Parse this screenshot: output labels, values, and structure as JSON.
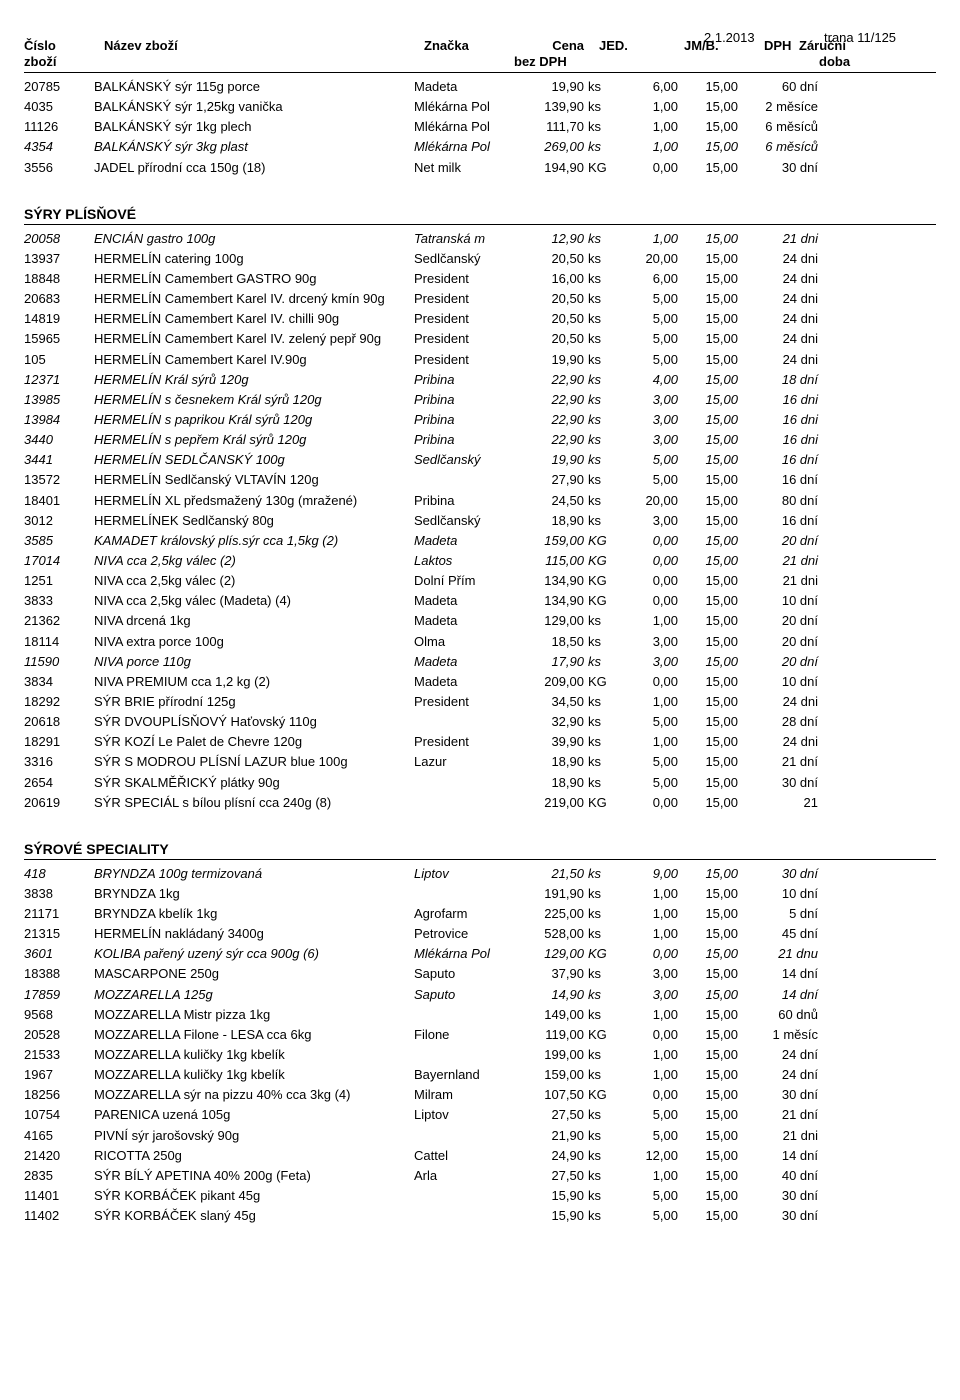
{
  "meta": {
    "date": "2.1.2013",
    "page": "trana 11/125"
  },
  "headers": {
    "cislo": "Číslo",
    "zbozi": "zboží",
    "nazev": "Název zboží",
    "znacka": "Značka",
    "cena": "Cena",
    "bezdph": "bez DPH",
    "jed": "JED.",
    "jmb": "JM/B.",
    "dph": "DPH",
    "zarucni": "Záruční",
    "doba": "doba"
  },
  "sections": [
    {
      "title": null,
      "rows": [
        {
          "i": false,
          "cislo": "20785",
          "nazev": "BALKÁNSKÝ sýr  115g porce",
          "znacka": "Madeta",
          "cena": "19,90",
          "jed": "ks",
          "jmb": "6,00",
          "dph": "15,00",
          "doba": "60 dní"
        },
        {
          "i": false,
          "cislo": "4035",
          "nazev": "BALKÁNSKÝ sýr 1,25kg vanička",
          "znacka": "Mlékárna Pol",
          "cena": "139,90",
          "jed": "ks",
          "jmb": "1,00",
          "dph": "15,00",
          "doba": "2 měsíce"
        },
        {
          "i": false,
          "cislo": "11126",
          "nazev": "BALKÁNSKÝ sýr 1kg plech",
          "znacka": "Mlékárna Pol",
          "cena": "111,70",
          "jed": "ks",
          "jmb": "1,00",
          "dph": "15,00",
          "doba": "6 měsíců"
        },
        {
          "i": true,
          "cislo": "4354",
          "nazev": "BALKÁNSKÝ sýr 3kg plast",
          "znacka": "Mlékárna Pol",
          "cena": "269,00",
          "jed": "ks",
          "jmb": "1,00",
          "dph": "15,00",
          "doba": "6 měsíců"
        },
        {
          "i": false,
          "cislo": "3556",
          "nazev": "JADEL přírodní cca 150g (18)",
          "znacka": "Net milk",
          "cena": "194,90",
          "jed": "KG",
          "jmb": "0,00",
          "dph": "15,00",
          "doba": "30 dní"
        }
      ]
    },
    {
      "title": "SÝRY PLÍSŇOVÉ",
      "rows": [
        {
          "i": true,
          "cislo": "20058",
          "nazev": "ENCIÁN  gastro 100g",
          "znacka": "Tatranská m",
          "cena": "12,90",
          "jed": "ks",
          "jmb": "1,00",
          "dph": "15,00",
          "doba": "21 dni"
        },
        {
          "i": false,
          "cislo": "13937",
          "nazev": "HERMELÍN  catering 100g",
          "znacka": "Sedlčanský",
          "cena": "20,50",
          "jed": "ks",
          "jmb": "20,00",
          "dph": "15,00",
          "doba": "24 dni"
        },
        {
          "i": false,
          "cislo": "18848",
          "nazev": "HERMELÍN Camembert GASTRO 90g",
          "znacka": "President",
          "cena": "16,00",
          "jed": "ks",
          "jmb": "6,00",
          "dph": "15,00",
          "doba": "24 dni"
        },
        {
          "i": false,
          "cislo": "20683",
          "nazev": "HERMELÍN Camembert Karel IV. drcený kmín 90g",
          "znacka": "President",
          "cena": "20,50",
          "jed": "ks",
          "jmb": "5,00",
          "dph": "15,00",
          "doba": "24 dni"
        },
        {
          "i": false,
          "cislo": "14819",
          "nazev": "HERMELÍN Camembert Karel IV. chilli 90g",
          "znacka": "President",
          "cena": "20,50",
          "jed": "ks",
          "jmb": "5,00",
          "dph": "15,00",
          "doba": "24 dni"
        },
        {
          "i": false,
          "cislo": "15965",
          "nazev": "HERMELÍN Camembert Karel IV. zelený pepř 90g",
          "znacka": "President",
          "cena": "20,50",
          "jed": "ks",
          "jmb": "5,00",
          "dph": "15,00",
          "doba": "24 dni"
        },
        {
          "i": false,
          "cislo": "105",
          "nazev": "HERMELÍN Camembert Karel IV.90g",
          "znacka": "President",
          "cena": "19,90",
          "jed": "ks",
          "jmb": "5,00",
          "dph": "15,00",
          "doba": "24 dni"
        },
        {
          "i": true,
          "cislo": "12371",
          "nazev": "HERMELÍN Král sýrů 120g",
          "znacka": "Pribina",
          "cena": "22,90",
          "jed": "ks",
          "jmb": "4,00",
          "dph": "15,00",
          "doba": "18 dní"
        },
        {
          "i": true,
          "cislo": "13985",
          "nazev": "HERMELÍN s česnekem Král sýrů 120g",
          "znacka": "Pribina",
          "cena": "22,90",
          "jed": "ks",
          "jmb": "3,00",
          "dph": "15,00",
          "doba": "16 dni"
        },
        {
          "i": true,
          "cislo": "13984",
          "nazev": "HERMELÍN s paprikou Král sýrů 120g",
          "znacka": "Pribina",
          "cena": "22,90",
          "jed": "ks",
          "jmb": "3,00",
          "dph": "15,00",
          "doba": "16 dni"
        },
        {
          "i": true,
          "cislo": "3440",
          "nazev": "HERMELÍN s pepřem Král sýrů 120g",
          "znacka": "Pribina",
          "cena": "22,90",
          "jed": "ks",
          "jmb": "3,00",
          "dph": "15,00",
          "doba": "16 dni"
        },
        {
          "i": true,
          "cislo": "3441",
          "nazev": "HERMELÍN SEDLČANSKÝ 100g",
          "znacka": "Sedlčanský",
          "cena": "19,90",
          "jed": "ks",
          "jmb": "5,00",
          "dph": "15,00",
          "doba": "16 dní"
        },
        {
          "i": false,
          "cislo": "13572",
          "nazev": "HERMELÍN Sedlčanský VLTAVÍN 120g",
          "znacka": "",
          "cena": "27,90",
          "jed": "ks",
          "jmb": "5,00",
          "dph": "15,00",
          "doba": "16 dní"
        },
        {
          "i": false,
          "cislo": "18401",
          "nazev": "HERMELÍN XL předsmažený 130g (mražené)",
          "znacka": "Pribina",
          "cena": "24,50",
          "jed": "ks",
          "jmb": "20,00",
          "dph": "15,00",
          "doba": "80 dní"
        },
        {
          "i": false,
          "cislo": "3012",
          "nazev": "HERMELÍNEK Sedlčanský 80g",
          "znacka": "Sedlčanský",
          "cena": "18,90",
          "jed": "ks",
          "jmb": "3,00",
          "dph": "15,00",
          "doba": "16 dní"
        },
        {
          "i": true,
          "cislo": "3585",
          "nazev": "KAMADET královský plís.sýr cca 1,5kg (2)",
          "znacka": "Madeta",
          "cena": "159,00",
          "jed": "KG",
          "jmb": "0,00",
          "dph": "15,00",
          "doba": "20 dní"
        },
        {
          "i": true,
          "cislo": "17014",
          "nazev": "NIVA cca 2,5kg válec (2)",
          "znacka": "Laktos",
          "cena": "115,00",
          "jed": "KG",
          "jmb": "0,00",
          "dph": "15,00",
          "doba": "21 dni"
        },
        {
          "i": false,
          "cislo": "1251",
          "nazev": "NIVA cca 2,5kg válec (2)",
          "znacka": "Dolní Přím",
          "cena": "134,90",
          "jed": "KG",
          "jmb": "0,00",
          "dph": "15,00",
          "doba": "21 dni"
        },
        {
          "i": false,
          "cislo": "3833",
          "nazev": "NIVA cca 2,5kg válec (Madeta) (4)",
          "znacka": "Madeta",
          "cena": "134,90",
          "jed": "KG",
          "jmb": "0,00",
          "dph": "15,00",
          "doba": "10 dní"
        },
        {
          "i": false,
          "cislo": "21362",
          "nazev": "NIVA drcená 1kg",
          "znacka": "Madeta",
          "cena": "129,00",
          "jed": "ks",
          "jmb": "1,00",
          "dph": "15,00",
          "doba": "20 dní"
        },
        {
          "i": false,
          "cislo": "18114",
          "nazev": "NIVA extra porce 100g",
          "znacka": "Olma",
          "cena": "18,50",
          "jed": "ks",
          "jmb": "3,00",
          "dph": "15,00",
          "doba": "20 dní"
        },
        {
          "i": true,
          "cislo": "11590",
          "nazev": "NIVA porce 110g",
          "znacka": "Madeta",
          "cena": "17,90",
          "jed": "ks",
          "jmb": "3,00",
          "dph": "15,00",
          "doba": "20 dní"
        },
        {
          "i": false,
          "cislo": "3834",
          "nazev": "NIVA PREMIUM cca 1,2 kg (2)",
          "znacka": "Madeta",
          "cena": "209,00",
          "jed": "KG",
          "jmb": "0,00",
          "dph": "15,00",
          "doba": "10 dní"
        },
        {
          "i": false,
          "cislo": "18292",
          "nazev": "SÝR BRIE přírodní 125g",
          "znacka": "President",
          "cena": "34,50",
          "jed": "ks",
          "jmb": "1,00",
          "dph": "15,00",
          "doba": "24 dni"
        },
        {
          "i": false,
          "cislo": "20618",
          "nazev": "SÝR DVOUPLÍSŇOVÝ Haťovský 110g",
          "znacka": "",
          "cena": "32,90",
          "jed": "ks",
          "jmb": "5,00",
          "dph": "15,00",
          "doba": "28 dní"
        },
        {
          "i": false,
          "cislo": "18291",
          "nazev": "SÝR KOZÍ Le Palet de Chevre 120g",
          "znacka": "President",
          "cena": "39,90",
          "jed": "ks",
          "jmb": "1,00",
          "dph": "15,00",
          "doba": "24 dni"
        },
        {
          "i": false,
          "cislo": "3316",
          "nazev": "SÝR S MODROU PLÍSNÍ LAZUR blue 100g",
          "znacka": "Lazur",
          "cena": "18,90",
          "jed": "ks",
          "jmb": "5,00",
          "dph": "15,00",
          "doba": "21 dní"
        },
        {
          "i": false,
          "cislo": "2654",
          "nazev": "SÝR SKALMĚŘICKÝ plátky 90g",
          "znacka": "",
          "cena": "18,90",
          "jed": "ks",
          "jmb": "5,00",
          "dph": "15,00",
          "doba": "30 dní"
        },
        {
          "i": false,
          "cislo": "20619",
          "nazev": "SÝR SPECIÁL s bílou plísní cca 240g (8)",
          "znacka": "",
          "cena": "219,00",
          "jed": "KG",
          "jmb": "0,00",
          "dph": "15,00",
          "doba": "21"
        }
      ]
    },
    {
      "title": "SÝROVÉ SPECIALITY",
      "rows": [
        {
          "i": true,
          "cislo": "418",
          "nazev": "BRYNDZA  100g termizovaná",
          "znacka": "Liptov",
          "cena": "21,50",
          "jed": "ks",
          "jmb": "9,00",
          "dph": "15,00",
          "doba": "30 dní"
        },
        {
          "i": false,
          "cislo": "3838",
          "nazev": "BRYNDZA 1kg",
          "znacka": "",
          "cena": "191,90",
          "jed": "ks",
          "jmb": "1,00",
          "dph": "15,00",
          "doba": "10 dní"
        },
        {
          "i": false,
          "cislo": "21171",
          "nazev": "BRYNDZA kbelík 1kg",
          "znacka": "Agrofarm",
          "cena": "225,00",
          "jed": "ks",
          "jmb": "1,00",
          "dph": "15,00",
          "doba": "5 dní"
        },
        {
          "i": false,
          "cislo": "21315",
          "nazev": "HERMELÍN nakládaný 3400g",
          "znacka": "Petrovice",
          "cena": "528,00",
          "jed": "ks",
          "jmb": "1,00",
          "dph": "15,00",
          "doba": "45 dní"
        },
        {
          "i": true,
          "cislo": "3601",
          "nazev": "KOLIBA pařený uzený sýr cca 900g (6)",
          "znacka": "Mlékárna Pol",
          "cena": "129,00",
          "jed": "KG",
          "jmb": "0,00",
          "dph": "15,00",
          "doba": "21 dnu"
        },
        {
          "i": false,
          "cislo": "18388",
          "nazev": "MASCARPONE 250g",
          "znacka": "Saputo",
          "cena": "37,90",
          "jed": "ks",
          "jmb": "3,00",
          "dph": "15,00",
          "doba": "14 dní"
        },
        {
          "i": true,
          "cislo": "17859",
          "nazev": "MOZZARELLA  125g",
          "znacka": "Saputo",
          "cena": "14,90",
          "jed": "ks",
          "jmb": "3,00",
          "dph": "15,00",
          "doba": "14 dní"
        },
        {
          "i": false,
          "cislo": "9568",
          "nazev": "MOZZARELLA  Mistr pizza 1kg",
          "znacka": "",
          "cena": "149,00",
          "jed": "ks",
          "jmb": "1,00",
          "dph": "15,00",
          "doba": "60 dnů"
        },
        {
          "i": false,
          "cislo": "20528",
          "nazev": "MOZZARELLA Filone - LESA cca 6kg",
          "znacka": "Filone",
          "cena": "119,00",
          "jed": "KG",
          "jmb": "0,00",
          "dph": "15,00",
          "doba": "1 měsíc"
        },
        {
          "i": false,
          "cislo": "21533",
          "nazev": "MOZZARELLA kuličky 1kg kbelík",
          "znacka": "",
          "cena": "199,00",
          "jed": "ks",
          "jmb": "1,00",
          "dph": "15,00",
          "doba": "24 dní"
        },
        {
          "i": false,
          "cislo": "1967",
          "nazev": "MOZZARELLA kuličky 1kg kbelík",
          "znacka": "Bayernland",
          "cena": "159,00",
          "jed": "ks",
          "jmb": "1,00",
          "dph": "15,00",
          "doba": "24 dní"
        },
        {
          "i": false,
          "cislo": "18256",
          "nazev": "MOZZARELLA sýr na pizzu 40% cca 3kg (4)",
          "znacka": "Milram",
          "cena": "107,50",
          "jed": "KG",
          "jmb": "0,00",
          "dph": "15,00",
          "doba": "30 dní"
        },
        {
          "i": false,
          "cislo": "10754",
          "nazev": "PARENICA uzená 105g",
          "znacka": "Liptov",
          "cena": "27,50",
          "jed": "ks",
          "jmb": "5,00",
          "dph": "15,00",
          "doba": "21 dní"
        },
        {
          "i": false,
          "cislo": "4165",
          "nazev": "PIVNÍ sýr jarošovský 90g",
          "znacka": "",
          "cena": "21,90",
          "jed": "ks",
          "jmb": "5,00",
          "dph": "15,00",
          "doba": "21 dni"
        },
        {
          "i": false,
          "cislo": "21420",
          "nazev": "RICOTTA 250g",
          "znacka": "Cattel",
          "cena": "24,90",
          "jed": "ks",
          "jmb": "12,00",
          "dph": "15,00",
          "doba": "14 dní"
        },
        {
          "i": false,
          "cislo": "2835",
          "nazev": "SÝR BÍLÝ APETINA 40% 200g (Feta)",
          "znacka": "Arla",
          "cena": "27,50",
          "jed": "ks",
          "jmb": "1,00",
          "dph": "15,00",
          "doba": "40 dní"
        },
        {
          "i": false,
          "cislo": "11401",
          "nazev": "SÝR KORBÁČEK pikant 45g",
          "znacka": "",
          "cena": "15,90",
          "jed": "ks",
          "jmb": "5,00",
          "dph": "15,00",
          "doba": "30 dní"
        },
        {
          "i": false,
          "cislo": "11402",
          "nazev": "SÝR KORBÁČEK slaný 45g",
          "znacka": "",
          "cena": "15,90",
          "jed": "ks",
          "jmb": "5,00",
          "dph": "15,00",
          "doba": "30 dní"
        }
      ]
    }
  ]
}
